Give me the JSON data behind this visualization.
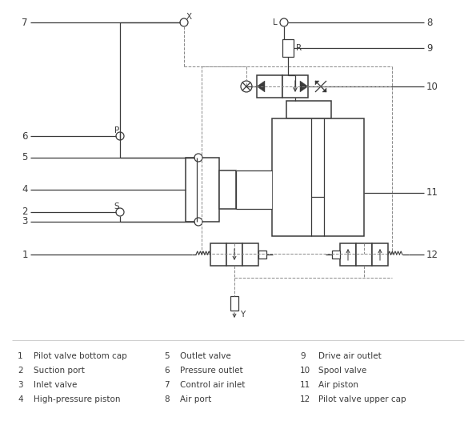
{
  "legend_items": [
    {
      "num": "1",
      "text": "Pilot valve bottom cap"
    },
    {
      "num": "2",
      "text": "Suction port"
    },
    {
      "num": "3",
      "text": "Inlet valve"
    },
    {
      "num": "4",
      "text": "High-pressure piston"
    },
    {
      "num": "5",
      "text": "Outlet valve"
    },
    {
      "num": "6",
      "text": "Pressure outlet"
    },
    {
      "num": "7",
      "text": "Control air inlet"
    },
    {
      "num": "8",
      "text": "Air port"
    },
    {
      "num": "9",
      "text": "Drive air outlet"
    },
    {
      "num": "10",
      "text": "Spool valve"
    },
    {
      "num": "11",
      "text": "Air piston"
    },
    {
      "num": "12",
      "text": "Pilot valve upper cap"
    }
  ],
  "line_color": "#3a3a3a",
  "dashed_color": "#888888",
  "text_color": "#3a3a3a",
  "bg_color": "#ffffff",
  "label_fontsize": 7.5,
  "legend_fontsize": 7.5,
  "number_fontsize": 8.5
}
